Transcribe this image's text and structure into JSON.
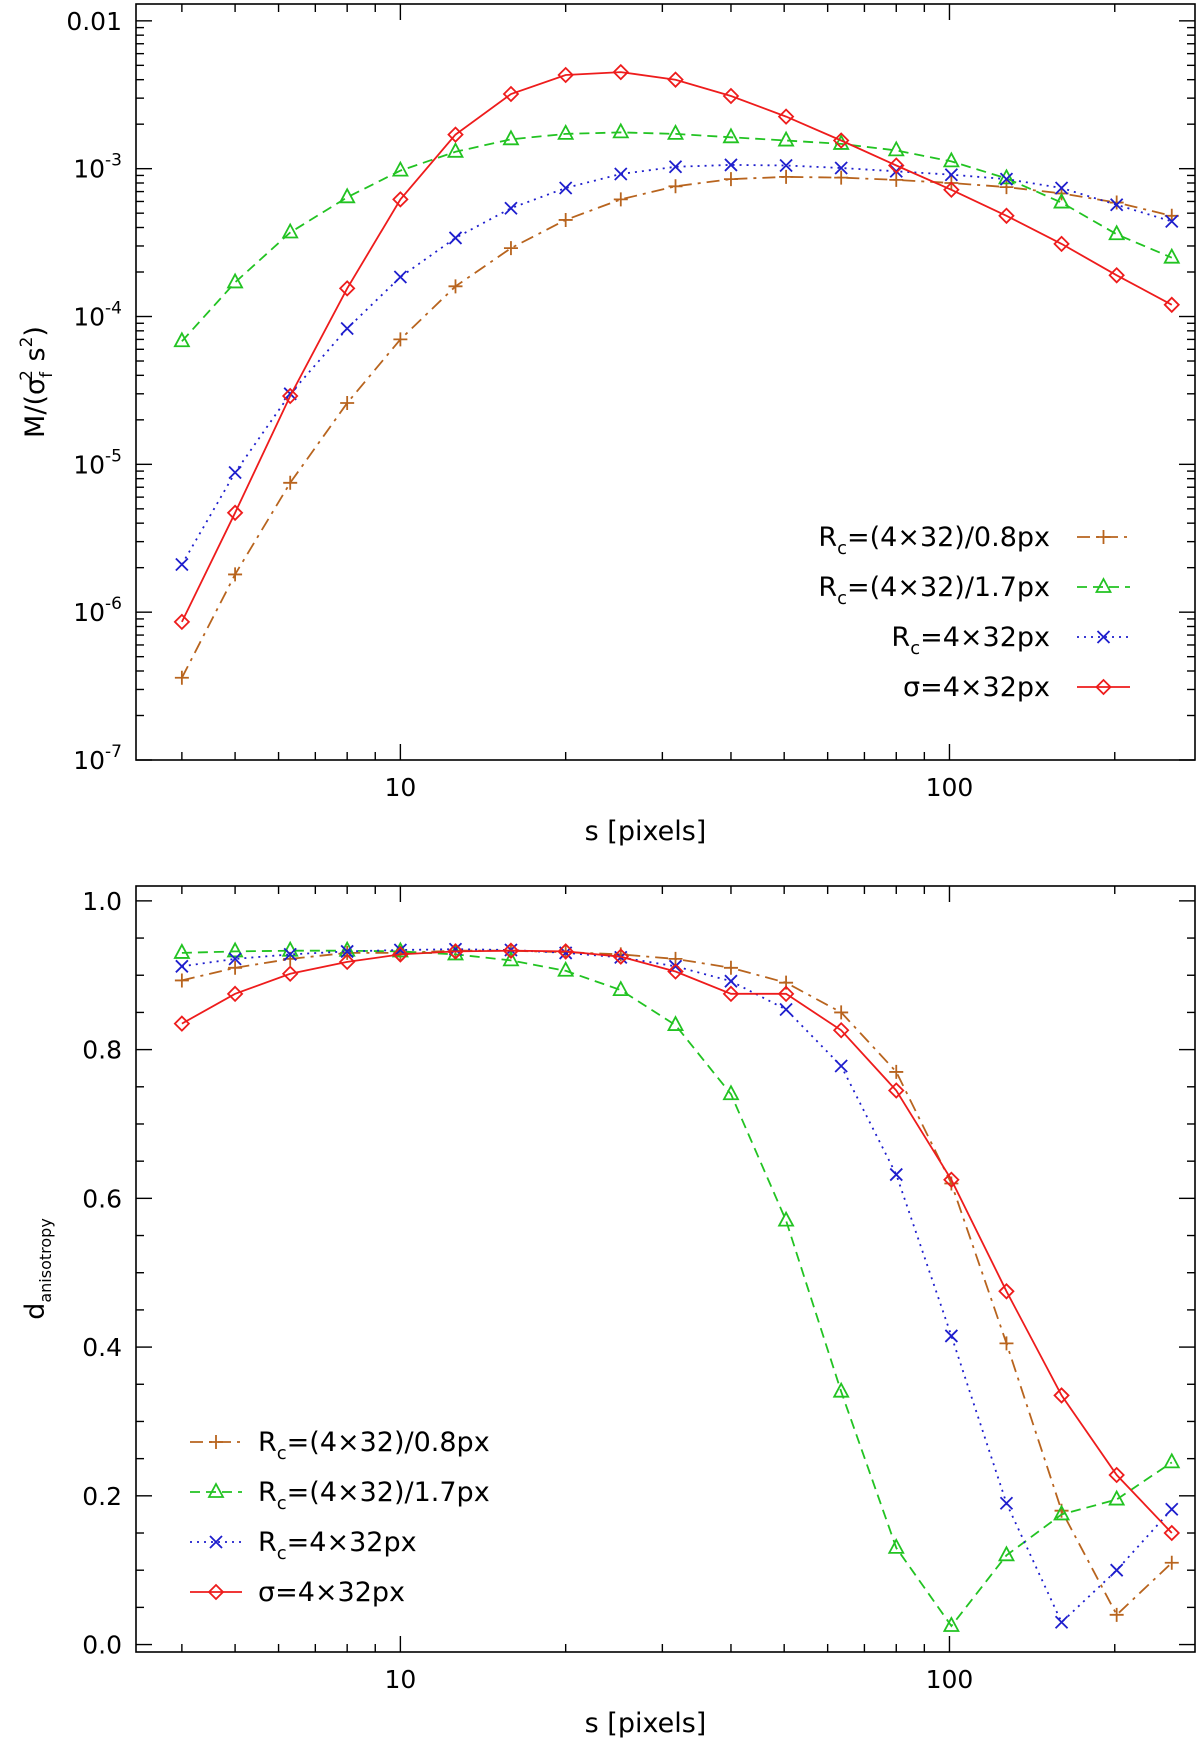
{
  "chart_data": [
    {
      "type": "line",
      "xscale": "log",
      "yscale": "log",
      "xlabel": "s [pixels]",
      "ylabel": {
        "base": "M/(σ",
        "sub": "f",
        "sup1": "2",
        "mid": " s",
        "sup2": "2",
        "end": ")"
      },
      "xlim": [
        3.3,
        280
      ],
      "ylim": [
        1e-07,
        0.013
      ],
      "x_ticks": [
        {
          "value": 10,
          "label": "10"
        },
        {
          "value": 100,
          "label": "100"
        }
      ],
      "y_ticks": [
        {
          "value": 0.01,
          "base": "0.01",
          "exp": ""
        },
        {
          "value": 0.001,
          "base": "10",
          "exp": "-3"
        },
        {
          "value": 0.0001,
          "base": "10",
          "exp": "-4"
        },
        {
          "value": 1e-05,
          "base": "10",
          "exp": "-5"
        },
        {
          "value": 1e-06,
          "base": "10",
          "exp": "-6"
        },
        {
          "value": 1e-07,
          "base": "10",
          "exp": "-7"
        }
      ],
      "legend_position": "bottom-right",
      "x": [
        4,
        5,
        6.3,
        8,
        10,
        12.6,
        15.9,
        20,
        25.2,
        31.7,
        40,
        50.4,
        63.5,
        80,
        100.8,
        127,
        160,
        201.6,
        254
      ],
      "series": [
        {
          "name": "(4×32)/0.8px",
          "prefix": "R",
          "sub": "c",
          "rest": "=(4×32)/0.8px",
          "color": "#b8641e",
          "dash": "13 6 3 6",
          "marker": "plus",
          "values": [
            3.6e-07,
            1.8e-06,
            7.5e-06,
            2.6e-05,
            7e-05,
            0.00016,
            0.00029,
            0.00045,
            0.00062,
            0.00076,
            0.00085,
            0.00088,
            0.00087,
            0.00084,
            0.0008,
            0.00075,
            0.00068,
            0.00059,
            0.00048
          ]
        },
        {
          "name": "(4×32)/1.7px",
          "prefix": "R",
          "sub": "c",
          "rest": "=(4×32)/1.7px",
          "color": "#22c322",
          "dash": "10 6",
          "marker": "triangle",
          "values": [
            6.8e-05,
            0.00017,
            0.00037,
            0.00064,
            0.00097,
            0.0013,
            0.00158,
            0.00172,
            0.00176,
            0.00172,
            0.00163,
            0.00155,
            0.00147,
            0.00133,
            0.00112,
            0.00086,
            0.00059,
            0.00036,
            0.00025
          ]
        },
        {
          "name": "4×32px",
          "prefix": "R",
          "sub": "c",
          "rest": "=4×32px",
          "color": "#1e1ecd",
          "dash": "2 5",
          "marker": "cross",
          "values": [
            2.1e-06,
            8.8e-06,
            3e-05,
            8.3e-05,
            0.000185,
            0.00034,
            0.00054,
            0.00074,
            0.00092,
            0.00103,
            0.00106,
            0.00105,
            0.00101,
            0.00096,
            0.00091,
            0.00085,
            0.00074,
            0.00057,
            0.00044
          ]
        },
        {
          "name": "σ=4×32px",
          "prefix": "σ",
          "sub": "",
          "rest": "=4×32px",
          "color": "#ee1c1c",
          "dash": "",
          "marker": "diamond",
          "values": [
            8.6e-07,
            4.7e-06,
            2.9e-05,
            0.000155,
            0.00062,
            0.0017,
            0.0032,
            0.0043,
            0.0045,
            0.004,
            0.0031,
            0.00225,
            0.00155,
            0.00105,
            0.00072,
            0.00048,
            0.00031,
            0.00019,
            0.00012
          ]
        }
      ]
    },
    {
      "type": "line",
      "xscale": "log",
      "yscale": "linear",
      "xlabel": "s [pixels]",
      "ylabel": {
        "base": "d",
        "sub": "anisotropy"
      },
      "xlim": [
        3.3,
        280
      ],
      "ylim": [
        -0.01,
        1.02
      ],
      "x_ticks": [
        {
          "value": 10,
          "label": "10"
        },
        {
          "value": 100,
          "label": "100"
        }
      ],
      "y_ticks": [
        {
          "value": 0.0,
          "label": "0.0"
        },
        {
          "value": 0.2,
          "label": "0.2"
        },
        {
          "value": 0.4,
          "label": "0.4"
        },
        {
          "value": 0.6,
          "label": "0.6"
        },
        {
          "value": 0.8,
          "label": "0.8"
        },
        {
          "value": 1.0,
          "label": "1.0"
        }
      ],
      "legend_position": "bottom-left",
      "x": [
        4,
        5,
        6.3,
        8,
        10,
        12.6,
        15.9,
        20,
        25.2,
        31.7,
        40,
        50.4,
        63.5,
        80,
        100.8,
        127,
        160,
        201.6,
        254
      ],
      "series": [
        {
          "name": "(4×32)/0.8px",
          "prefix": "R",
          "sub": "c",
          "rest": "=(4×32)/0.8px",
          "color": "#b8641e",
          "dash": "13 6 3 6",
          "marker": "plus",
          "values": [
            0.893,
            0.91,
            0.922,
            0.93,
            0.93,
            0.933,
            0.933,
            0.931,
            0.928,
            0.922,
            0.91,
            0.89,
            0.85,
            0.77,
            0.62,
            0.405,
            0.18,
            0.04,
            0.11
          ]
        },
        {
          "name": "(4×32)/1.7px",
          "prefix": "R",
          "sub": "c",
          "rest": "=(4×32)/1.7px",
          "color": "#22c322",
          "dash": "10 6",
          "marker": "triangle",
          "values": [
            0.93,
            0.932,
            0.933,
            0.933,
            0.932,
            0.928,
            0.92,
            0.906,
            0.88,
            0.833,
            0.74,
            0.57,
            0.34,
            0.13,
            0.025,
            0.12,
            0.175,
            0.195,
            0.245
          ]
        },
        {
          "name": "4×32px",
          "prefix": "R",
          "sub": "c",
          "rest": "=4×32px",
          "color": "#1e1ecd",
          "dash": "2 5",
          "marker": "cross",
          "values": [
            0.912,
            0.922,
            0.928,
            0.932,
            0.934,
            0.935,
            0.934,
            0.93,
            0.924,
            0.912,
            0.892,
            0.854,
            0.778,
            0.632,
            0.415,
            0.19,
            0.03,
            0.1,
            0.182
          ]
        },
        {
          "name": "σ=4×32px",
          "prefix": "σ",
          "sub": "",
          "rest": "=4×32px",
          "color": "#ee1c1c",
          "dash": "",
          "marker": "diamond",
          "values": [
            0.835,
            0.875,
            0.902,
            0.918,
            0.928,
            0.932,
            0.933,
            0.932,
            0.925,
            0.905,
            0.875,
            0.875,
            0.826,
            0.745,
            0.625,
            0.475,
            0.335,
            0.228,
            0.15
          ]
        }
      ]
    }
  ]
}
